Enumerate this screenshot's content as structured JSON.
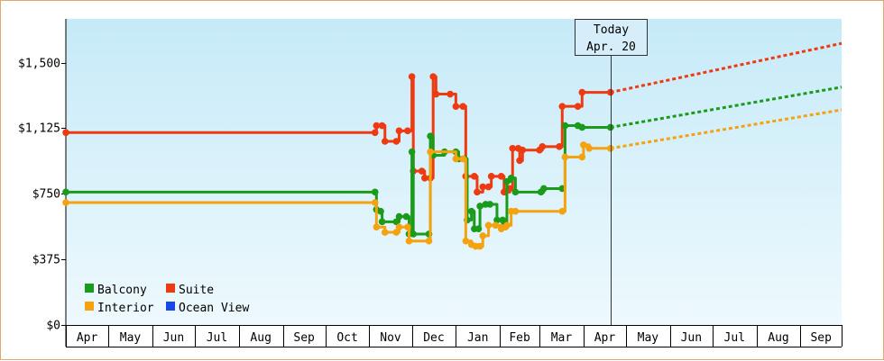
{
  "chart_data": {
    "type": "line",
    "y_ticks": [
      "$1,500",
      "$1,125",
      "$750",
      "$375",
      "$0"
    ],
    "y_tick_values": [
      1500,
      1125,
      750,
      375,
      0
    ],
    "ylim": [
      0,
      1750
    ],
    "x_months": [
      "Apr",
      "May",
      "Jun",
      "Jul",
      "Aug",
      "Sep",
      "Oct",
      "Nov",
      "Dec",
      "Jan",
      "Feb",
      "Mar",
      "Apr",
      "May",
      "Jun",
      "Jul",
      "Aug",
      "Sep"
    ],
    "x_start": "2021-04-01",
    "x_end": "2022-09-30",
    "today": {
      "line1": "Today",
      "line2": "Apr. 20",
      "date": "2022-04-20"
    },
    "legend": [
      "Balcony",
      "Suite",
      "Interior",
      "Ocean View"
    ],
    "colors": {
      "Balcony": "#1a9b1a",
      "Suite": "#ee3a10",
      "Interior": "#f5a20f",
      "Ocean View": "#1848e8"
    },
    "plot_bg_top": "#c6eaf8",
    "plot_bg_bottom": "#eef9fd",
    "series": [
      {
        "name": "Suite",
        "points": [
          [
            "2021-04-01",
            1100
          ],
          [
            "2021-11-05",
            1100
          ],
          [
            "2021-11-06",
            1140
          ],
          [
            "2021-11-10",
            1140
          ],
          [
            "2021-11-12",
            1050
          ],
          [
            "2021-11-20",
            1050
          ],
          [
            "2021-11-22",
            1110
          ],
          [
            "2021-11-28",
            1110
          ],
          [
            "2021-12-01",
            1420
          ],
          [
            "2021-12-02",
            880
          ],
          [
            "2021-12-08",
            880
          ],
          [
            "2021-12-10",
            840
          ],
          [
            "2021-12-14",
            840
          ],
          [
            "2021-12-16",
            1420
          ],
          [
            "2021-12-18",
            1320
          ],
          [
            "2021-12-28",
            1320
          ],
          [
            "2022-01-01",
            1250
          ],
          [
            "2022-01-06",
            1250
          ],
          [
            "2022-01-08",
            850
          ],
          [
            "2022-01-14",
            850
          ],
          [
            "2022-01-16",
            760
          ],
          [
            "2022-01-20",
            790
          ],
          [
            "2022-01-24",
            790
          ],
          [
            "2022-01-26",
            850
          ],
          [
            "2022-02-02",
            850
          ],
          [
            "2022-02-04",
            760
          ],
          [
            "2022-02-08",
            780
          ],
          [
            "2022-02-10",
            1010
          ],
          [
            "2022-02-14",
            1010
          ],
          [
            "2022-02-15",
            940
          ],
          [
            "2022-02-17",
            1000
          ],
          [
            "2022-03-01",
            1000
          ],
          [
            "2022-03-03",
            1020
          ],
          [
            "2022-03-15",
            1020
          ],
          [
            "2022-03-17",
            1250
          ],
          [
            "2022-03-28",
            1250
          ],
          [
            "2022-03-31",
            1330
          ],
          [
            "2022-04-20",
            1330
          ]
        ],
        "forecast": [
          [
            "2022-04-20",
            1330
          ],
          [
            "2022-09-30",
            1610
          ]
        ]
      },
      {
        "name": "Balcony",
        "points": [
          [
            "2021-04-01",
            760
          ],
          [
            "2021-11-05",
            760
          ],
          [
            "2021-11-06",
            660
          ],
          [
            "2021-11-09",
            650
          ],
          [
            "2021-11-10",
            590
          ],
          [
            "2021-11-20",
            590
          ],
          [
            "2021-11-22",
            620
          ],
          [
            "2021-11-27",
            620
          ],
          [
            "2021-11-29",
            520
          ],
          [
            "2021-12-01",
            990
          ],
          [
            "2021-12-02",
            520
          ],
          [
            "2021-12-13",
            520
          ],
          [
            "2021-12-14",
            1080
          ],
          [
            "2021-12-16",
            970
          ],
          [
            "2021-12-24",
            990
          ],
          [
            "2022-01-01",
            990
          ],
          [
            "2022-01-03",
            950
          ],
          [
            "2022-01-07",
            950
          ],
          [
            "2022-01-09",
            600
          ],
          [
            "2022-01-12",
            650
          ],
          [
            "2022-01-14",
            550
          ],
          [
            "2022-01-17",
            550
          ],
          [
            "2022-01-18",
            680
          ],
          [
            "2022-01-22",
            690
          ],
          [
            "2022-01-25",
            690
          ],
          [
            "2022-01-30",
            600
          ],
          [
            "2022-02-03",
            600
          ],
          [
            "2022-02-04",
            590
          ],
          [
            "2022-02-06",
            820
          ],
          [
            "2022-02-09",
            840
          ],
          [
            "2022-02-12",
            760
          ],
          [
            "2022-03-02",
            760
          ],
          [
            "2022-03-04",
            780
          ],
          [
            "2022-03-17",
            780
          ],
          [
            "2022-03-19",
            1140
          ],
          [
            "2022-03-28",
            1140
          ],
          [
            "2022-03-31",
            1130
          ],
          [
            "2022-04-20",
            1130
          ]
        ],
        "forecast": [
          [
            "2022-04-20",
            1130
          ],
          [
            "2022-09-30",
            1360
          ]
        ]
      },
      {
        "name": "Interior",
        "points": [
          [
            "2021-04-01",
            700
          ],
          [
            "2021-11-05",
            700
          ],
          [
            "2021-11-06",
            560
          ],
          [
            "2021-11-12",
            530
          ],
          [
            "2021-11-20",
            530
          ],
          [
            "2021-11-22",
            560
          ],
          [
            "2021-11-28",
            560
          ],
          [
            "2021-11-29",
            480
          ],
          [
            "2021-12-13",
            480
          ],
          [
            "2021-12-14",
            990
          ],
          [
            "2022-01-01",
            950
          ],
          [
            "2022-01-06",
            950
          ],
          [
            "2022-01-08",
            480
          ],
          [
            "2022-01-12",
            460
          ],
          [
            "2022-01-15",
            450
          ],
          [
            "2022-01-18",
            450
          ],
          [
            "2022-01-20",
            510
          ],
          [
            "2022-01-24",
            570
          ],
          [
            "2022-01-29",
            570
          ],
          [
            "2022-02-02",
            550
          ],
          [
            "2022-02-05",
            560
          ],
          [
            "2022-02-06",
            570
          ],
          [
            "2022-02-09",
            650
          ],
          [
            "2022-02-12",
            650
          ],
          [
            "2022-03-17",
            650
          ],
          [
            "2022-03-19",
            960
          ],
          [
            "2022-03-31",
            960
          ],
          [
            "2022-04-01",
            1030
          ],
          [
            "2022-04-05",
            1010
          ],
          [
            "2022-04-20",
            1010
          ]
        ],
        "forecast": [
          [
            "2022-04-20",
            1010
          ],
          [
            "2022-09-30",
            1230
          ]
        ]
      }
    ]
  }
}
